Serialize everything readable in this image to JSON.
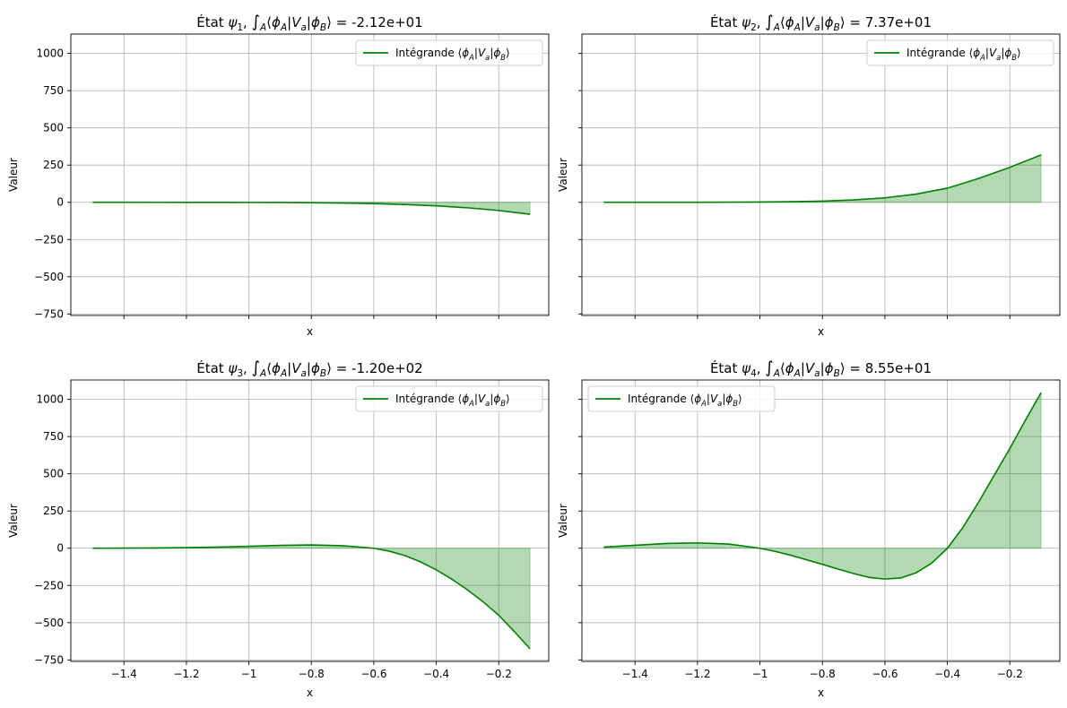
{
  "colors": {
    "line": "#008000",
    "fill": "#008000",
    "grid": "#b0b0b0",
    "axis": "#000000"
  },
  "chart_data": [
    {
      "type": "area",
      "title": "État ψ₁, ∫A⟨ϕA|Va|ϕB⟩ =  -2.12e+01",
      "xlabel": "x",
      "ylabel": "Valeur",
      "xlim": [
        -1.57,
        -0.04
      ],
      "ylim": [
        -760,
        1130
      ],
      "grid": true,
      "show_xticklabels": false,
      "legend": {
        "position": "upper right",
        "label": "Intégrande ⟨ϕA|Va|ϕB⟩"
      },
      "xticks": [
        -1.4,
        -1.2,
        -1.0,
        -0.8,
        -0.6,
        -0.4,
        -0.2
      ],
      "yticks": [
        -750,
        -500,
        -250,
        0,
        250,
        500,
        750,
        1000
      ],
      "x": [
        -1.5,
        -1.4,
        -1.3,
        -1.2,
        -1.1,
        -1.0,
        -0.9,
        -0.8,
        -0.7,
        -0.6,
        -0.5,
        -0.4,
        -0.3,
        -0.2,
        -0.1
      ],
      "y": [
        0,
        0,
        -0.1,
        -0.2,
        -0.4,
        -0.8,
        -1.5,
        -2.8,
        -5,
        -9,
        -15,
        -24,
        -37,
        -55,
        -80
      ]
    },
    {
      "type": "area",
      "title": "État ψ₂, ∫A⟨ϕA|Va|ϕB⟩ =  7.37e+01",
      "xlabel": "x",
      "ylabel": "Valeur",
      "xlim": [
        -1.57,
        -0.04
      ],
      "ylim": [
        -760,
        1130
      ],
      "grid": true,
      "show_xticklabels": false,
      "legend": {
        "position": "upper right",
        "label": "Intégrande ⟨ϕA|Va|ϕB⟩"
      },
      "xticks": [
        -1.4,
        -1.2,
        -1.0,
        -0.8,
        -0.6,
        -0.4,
        -0.2
      ],
      "yticks": [
        -750,
        -500,
        -250,
        0,
        250,
        500,
        750,
        1000
      ],
      "x": [
        -1.5,
        -1.4,
        -1.3,
        -1.2,
        -1.1,
        -1.0,
        -0.9,
        -0.8,
        -0.7,
        -0.6,
        -0.5,
        -0.4,
        -0.3,
        -0.2,
        -0.1
      ],
      "y": [
        0,
        0,
        0.1,
        0.3,
        0.8,
        1.7,
        4,
        8,
        16,
        30,
        55,
        95,
        160,
        235,
        318
      ]
    },
    {
      "type": "area",
      "title": "État ψ₃, ∫A⟨ϕA|Va|ϕB⟩ =  -1.20e+02",
      "xlabel": "x",
      "ylabel": "Valeur",
      "xlim": [
        -1.57,
        -0.04
      ],
      "ylim": [
        -760,
        1130
      ],
      "grid": true,
      "show_xticklabels": true,
      "legend": {
        "position": "upper right",
        "label": "Intégrande ⟨ϕA|Va|ϕB⟩"
      },
      "xticks": [
        -1.4,
        -1.2,
        -1.0,
        -0.8,
        -0.6,
        -0.4,
        -0.2
      ],
      "yticks": [
        -750,
        -500,
        -250,
        0,
        250,
        500,
        750,
        1000
      ],
      "x": [
        -1.5,
        -1.4,
        -1.3,
        -1.2,
        -1.1,
        -1.0,
        -0.9,
        -0.8,
        -0.7,
        -0.65,
        -0.6,
        -0.55,
        -0.5,
        -0.45,
        -0.4,
        -0.35,
        -0.3,
        -0.25,
        -0.2,
        -0.15,
        -0.1
      ],
      "y": [
        0,
        1,
        2,
        4,
        8,
        13,
        19,
        22,
        17,
        9,
        0,
        -20,
        -50,
        -92,
        -145,
        -208,
        -280,
        -360,
        -450,
        -560,
        -675
      ]
    },
    {
      "type": "area",
      "title": "État ψ₄, ∫A⟨ϕA|Va|ϕB⟩ =  8.55e+01",
      "xlabel": "x",
      "ylabel": "Valeur",
      "xlim": [
        -1.57,
        -0.04
      ],
      "ylim": [
        -760,
        1130
      ],
      "grid": true,
      "show_xticklabels": true,
      "legend": {
        "position": "upper left",
        "label": "Intégrande ⟨ϕA|Va|ϕB⟩"
      },
      "xticks": [
        -1.4,
        -1.2,
        -1.0,
        -0.8,
        -0.6,
        -0.4,
        -0.2
      ],
      "yticks": [
        -750,
        -500,
        -250,
        0,
        250,
        500,
        750,
        1000
      ],
      "x": [
        -1.5,
        -1.4,
        -1.3,
        -1.2,
        -1.1,
        -1.0,
        -0.95,
        -0.9,
        -0.85,
        -0.8,
        -0.75,
        -0.7,
        -0.65,
        -0.6,
        -0.55,
        -0.5,
        -0.45,
        -0.4,
        -0.35,
        -0.3,
        -0.25,
        -0.2,
        -0.15,
        -0.1
      ],
      "y": [
        8,
        20,
        32,
        36,
        28,
        0,
        -22,
        -48,
        -78,
        -108,
        -140,
        -170,
        -196,
        -207,
        -200,
        -165,
        -100,
        0,
        140,
        310,
        490,
        670,
        860,
        1045
      ]
    }
  ]
}
